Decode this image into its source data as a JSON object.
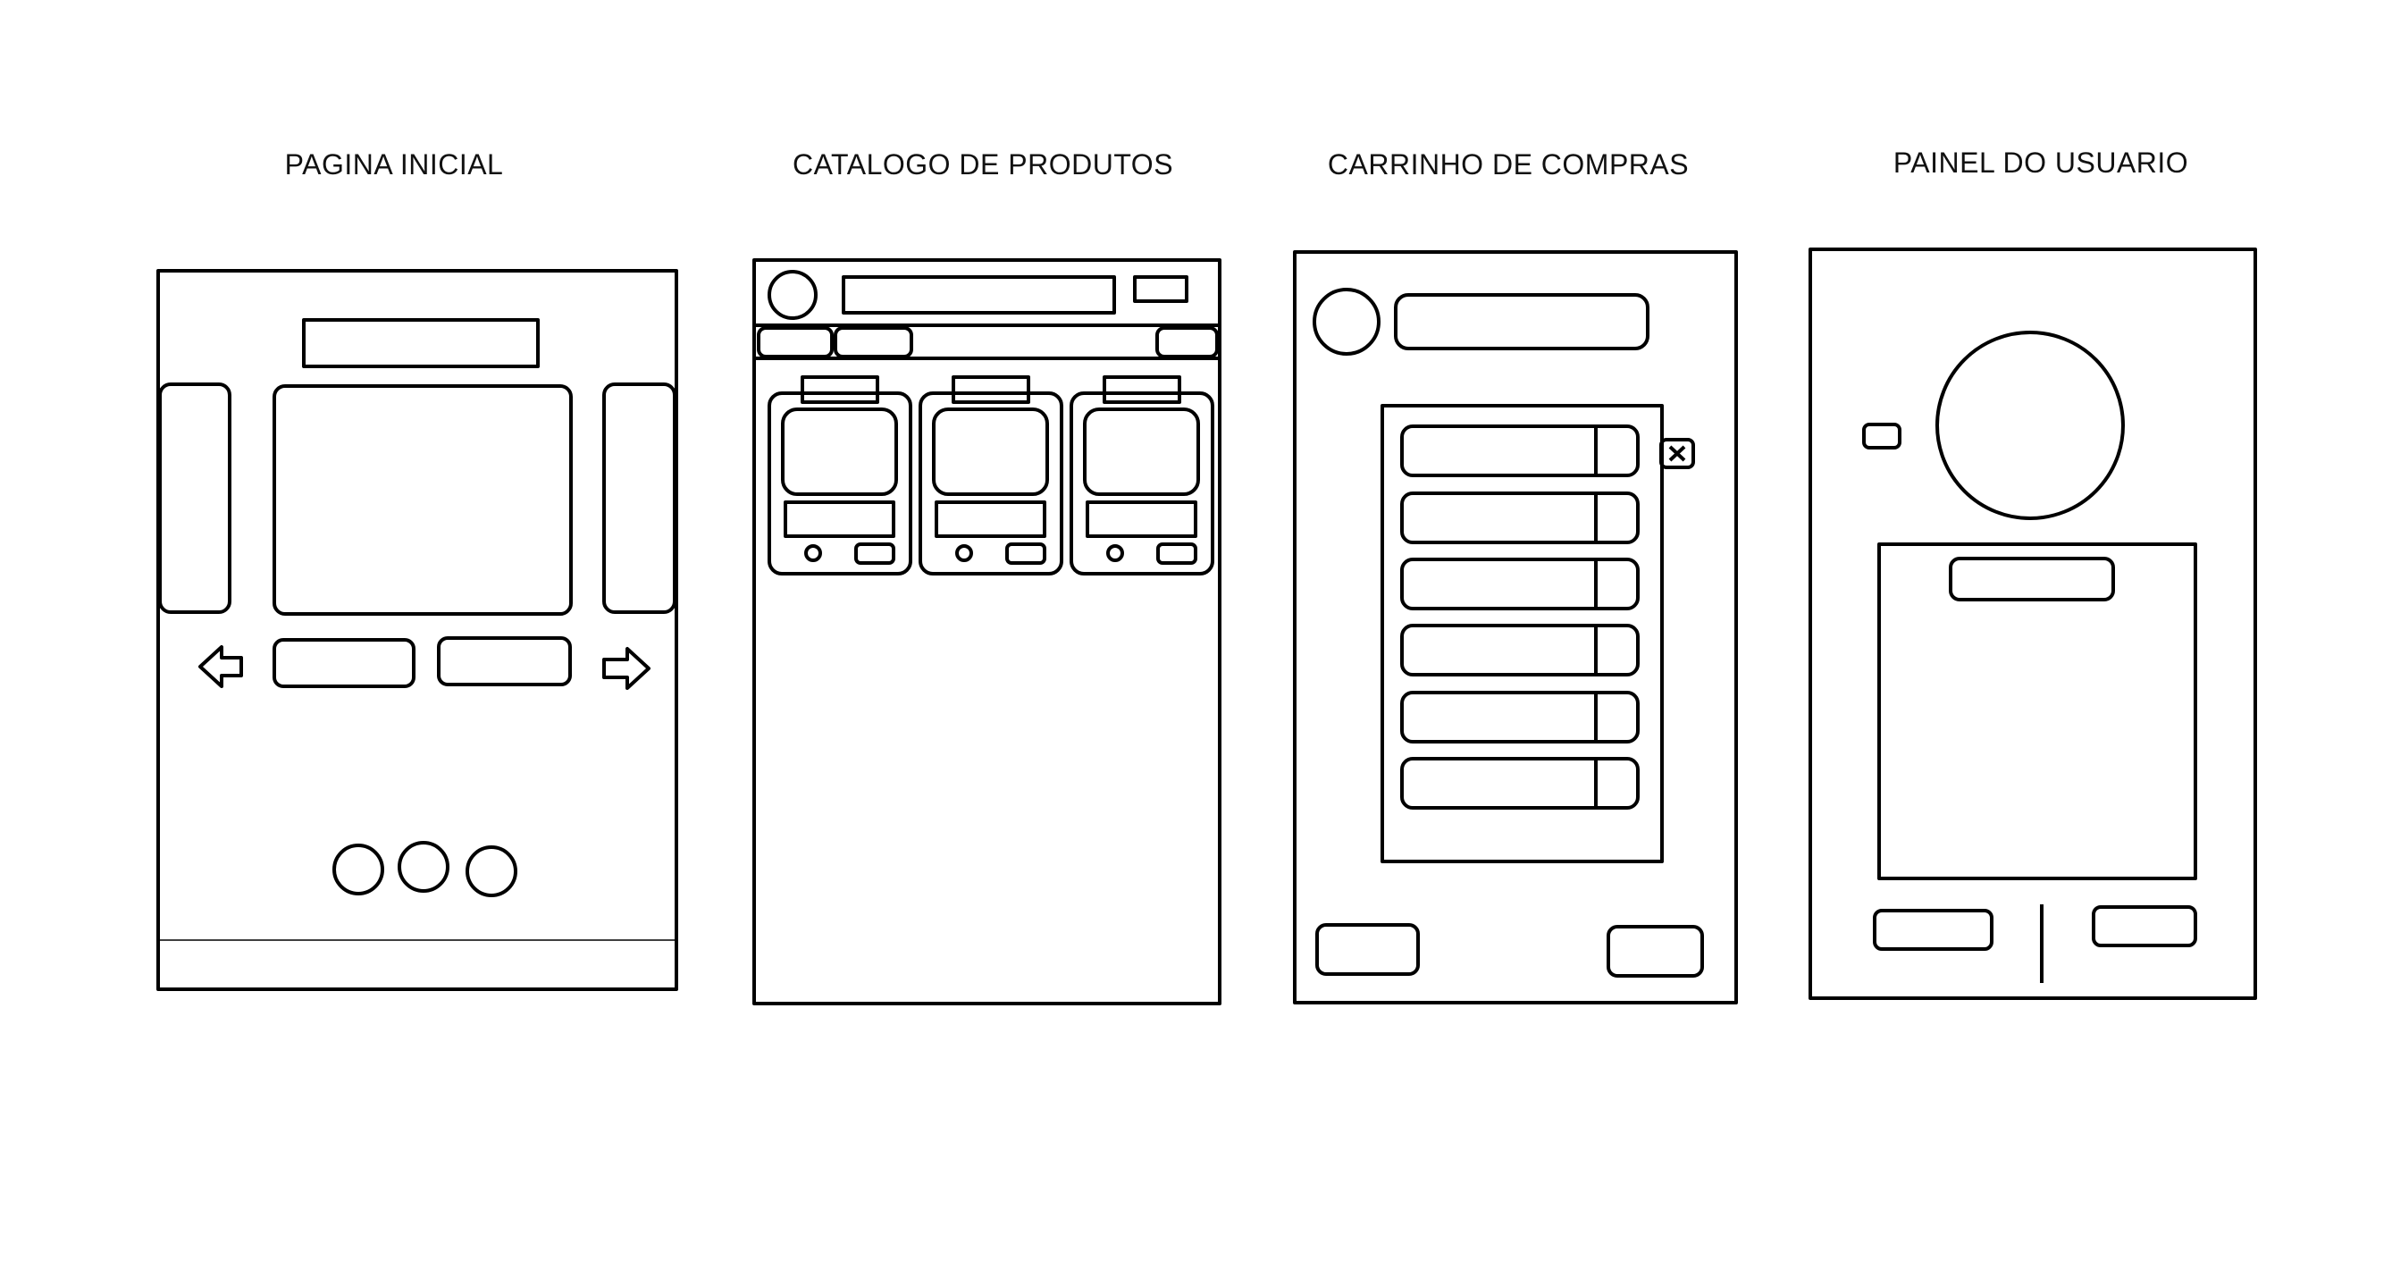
{
  "screens": [
    {
      "id": "home",
      "title": "PAGINA INICIAL"
    },
    {
      "id": "catalog",
      "title": "CATALOGO DE PRODUTOS"
    },
    {
      "id": "cart",
      "title": "CARRINHO DE COMPRAS"
    },
    {
      "id": "user",
      "title": "PAINEL DO USUARIO"
    }
  ],
  "colors": {
    "stroke": "#000000",
    "background": "#ffffff"
  },
  "icons": {
    "carousel_prev": "arrow-left-icon",
    "carousel_next": "arrow-right-icon",
    "cart_remove": "close-x-icon"
  },
  "home": {
    "carousel_dots": 3
  },
  "catalog": {
    "product_cards": 3
  },
  "cart": {
    "items": 6
  }
}
